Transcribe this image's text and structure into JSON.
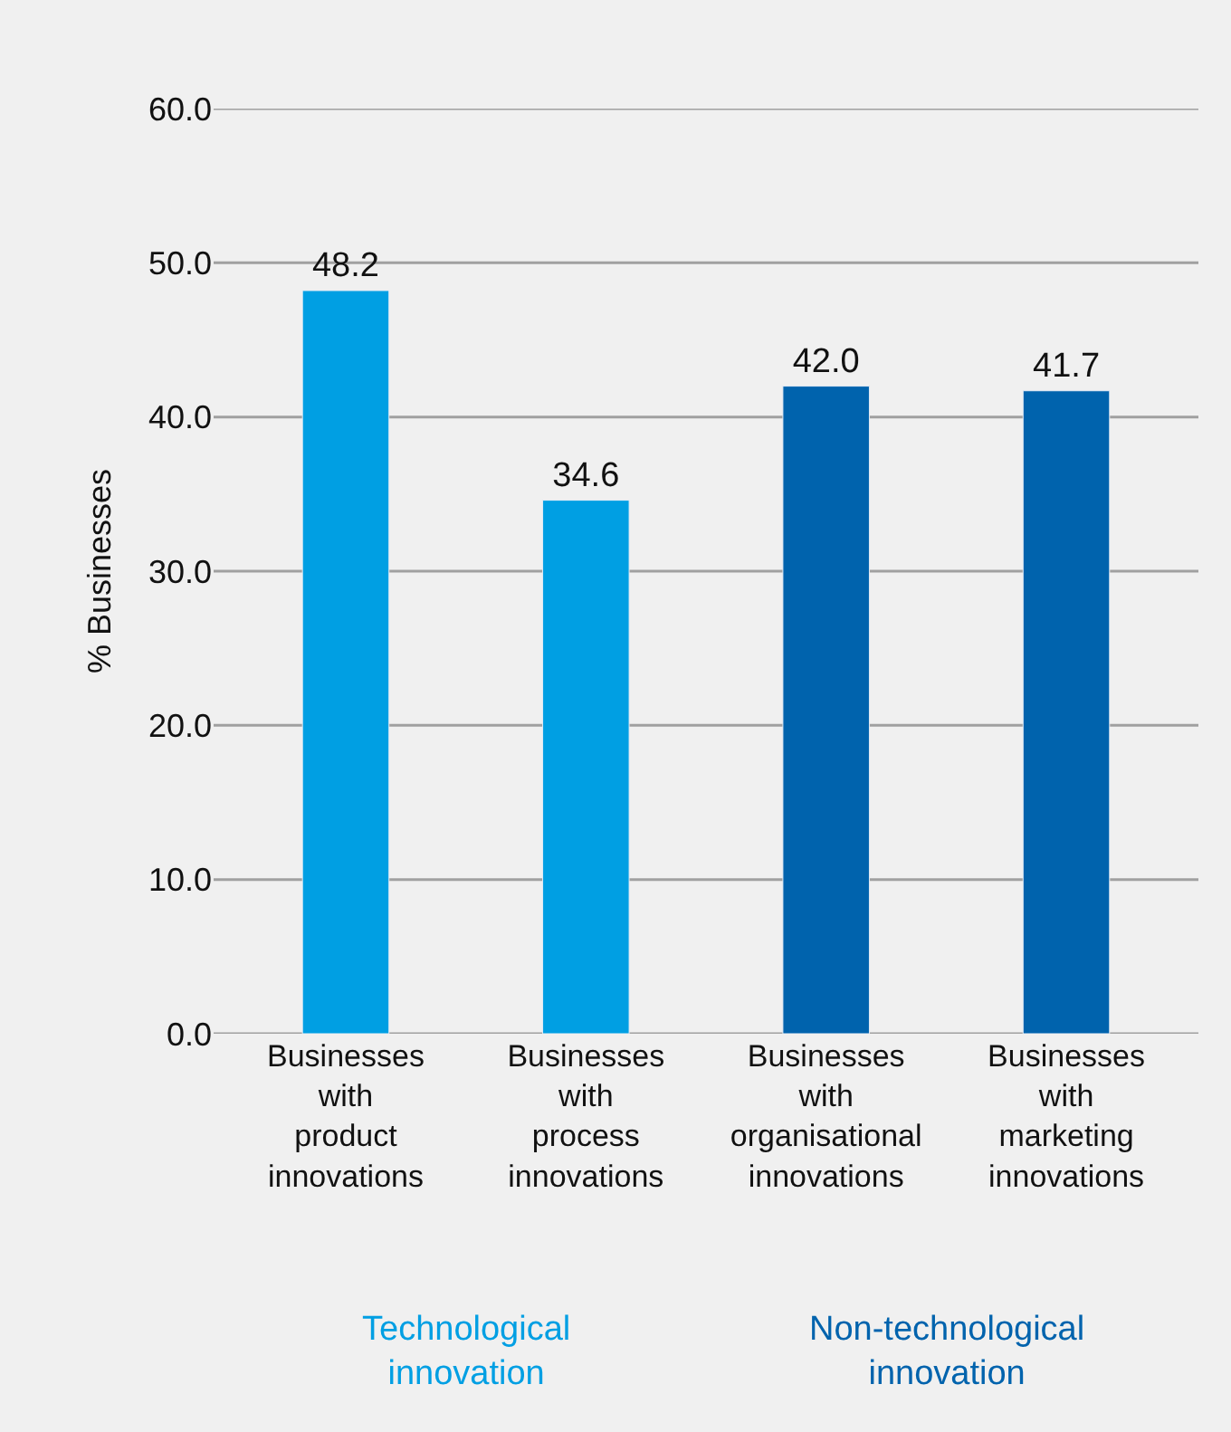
{
  "chart_data": {
    "type": "bar",
    "categories": [
      "Businesses\nwith\nproduct\ninnovations",
      "Businesses\nwith\nprocess\ninnovations",
      "Businesses\nwith\norganisational\ninnovations",
      "Businesses\nwith\nmarketing\ninnovations"
    ],
    "series": [
      {
        "name": "Technological\ninnovation",
        "color": "#009fe3",
        "values": [
          48.2,
          34.6,
          null,
          null
        ],
        "value_labels": [
          "48.2",
          "34.6",
          null,
          null
        ]
      },
      {
        "name": "Non-technological\ninnovation",
        "color": "#0063ad",
        "values": [
          null,
          null,
          42.0,
          41.7
        ],
        "value_labels": [
          null,
          null,
          "42.0",
          "41.7"
        ]
      }
    ],
    "ylabel": "% Businesses",
    "ylim": [
      0,
      60
    ],
    "yticks": [
      {
        "value": 0,
        "label": "0.0"
      },
      {
        "value": 10,
        "label": "10.0"
      },
      {
        "value": 20,
        "label": "20.0"
      },
      {
        "value": 30,
        "label": "30.0"
      },
      {
        "value": 40,
        "label": "40.0"
      },
      {
        "value": 50,
        "label": "50.0"
      },
      {
        "value": 60,
        "label": "60.0"
      }
    ],
    "grid": "y",
    "legend": false
  }
}
